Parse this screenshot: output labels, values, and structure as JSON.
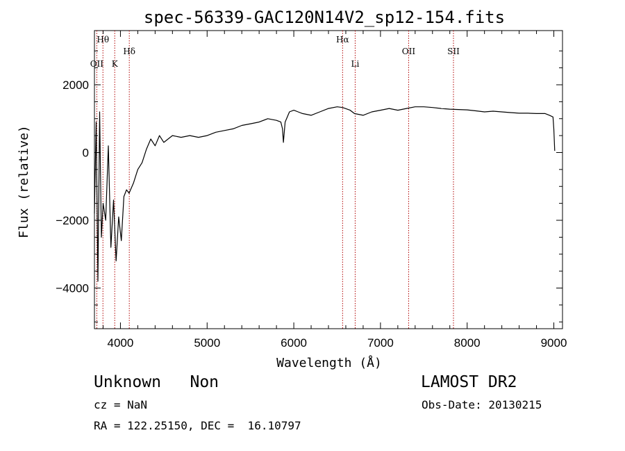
{
  "chart_data": {
    "type": "line",
    "title": "spec-56339-GAC120N14V2_sp12-154.fits",
    "xlabel": "Wavelength (Å)",
    "ylabel": "Flux (relative)",
    "xlim": [
      3700,
      9100
    ],
    "ylim": [
      -5200,
      3600
    ],
    "xticks": [
      4000,
      5000,
      6000,
      7000,
      8000,
      9000
    ],
    "yticks": [
      -4000,
      -2000,
      0,
      2000
    ],
    "xtick_labels": [
      "4000",
      "5000",
      "6000",
      "7000",
      "8000",
      "9000"
    ],
    "ytick_labels": [
      "−4000",
      "−2000",
      "0",
      "2000"
    ],
    "grid": false,
    "series": [
      {
        "color": "#000000",
        "x": [
          3700,
          3720,
          3740,
          3760,
          3780,
          3800,
          3830,
          3860,
          3890,
          3920,
          3950,
          3980,
          4010,
          4040,
          4070,
          4100,
          4150,
          4200,
          4250,
          4300,
          4350,
          4400,
          4450,
          4500,
          4550,
          4600,
          4700,
          4800,
          4900,
          5000,
          5100,
          5200,
          5300,
          5400,
          5500,
          5600,
          5700,
          5800,
          5850,
          5870,
          5880,
          5900,
          5950,
          6000,
          6050,
          6100,
          6200,
          6300,
          6400,
          6500,
          6563,
          6650,
          6700,
          6800,
          6900,
          7000,
          7100,
          7200,
          7300,
          7400,
          7500,
          7600,
          7700,
          7800,
          7900,
          8000,
          8100,
          8200,
          8300,
          8400,
          8500,
          8600,
          8700,
          8800,
          8900,
          8950,
          8990,
          9000,
          9010
        ],
        "y": [
          -1800,
          900,
          -3800,
          1200,
          -2500,
          -1500,
          -2000,
          200,
          -2800,
          -1400,
          -3200,
          -1900,
          -2600,
          -1300,
          -1100,
          -1200,
          -900,
          -500,
          -300,
          100,
          400,
          200,
          500,
          300,
          400,
          500,
          450,
          500,
          450,
          500,
          600,
          650,
          700,
          800,
          850,
          900,
          1000,
          950,
          900,
          700,
          300,
          900,
          1200,
          1250,
          1200,
          1150,
          1100,
          1200,
          1300,
          1350,
          1330,
          1250,
          1150,
          1100,
          1200,
          1250,
          1300,
          1250,
          1300,
          1350,
          1350,
          1330,
          1300,
          1280,
          1270,
          1260,
          1230,
          1200,
          1220,
          1200,
          1180,
          1160,
          1160,
          1150,
          1150,
          1100,
          1050,
          700,
          50
        ]
      }
    ],
    "lines": [
      {
        "label": "Hθ",
        "x": 3798,
        "row": 0
      },
      {
        "label": "OII",
        "x": 3727,
        "row": 2
      },
      {
        "label": "K",
        "x": 3934,
        "row": 2
      },
      {
        "label": "Hδ",
        "x": 4102,
        "row": 1
      },
      {
        "label": "Hα",
        "x": 6563,
        "row": 0
      },
      {
        "label": "Li",
        "x": 6708,
        "row": 2
      },
      {
        "label": "OII",
        "x": 7325,
        "row": 1
      },
      {
        "label": "SII",
        "x": 7842,
        "row": 1
      }
    ]
  },
  "info": {
    "class_text": "Unknown   Non",
    "cz_text": "cz = NaN",
    "radec_text": "RA = 122.25150, DEC =  16.10797",
    "survey_text": "LAMOST DR2",
    "obsdate_text": "Obs-Date: 20130215"
  }
}
